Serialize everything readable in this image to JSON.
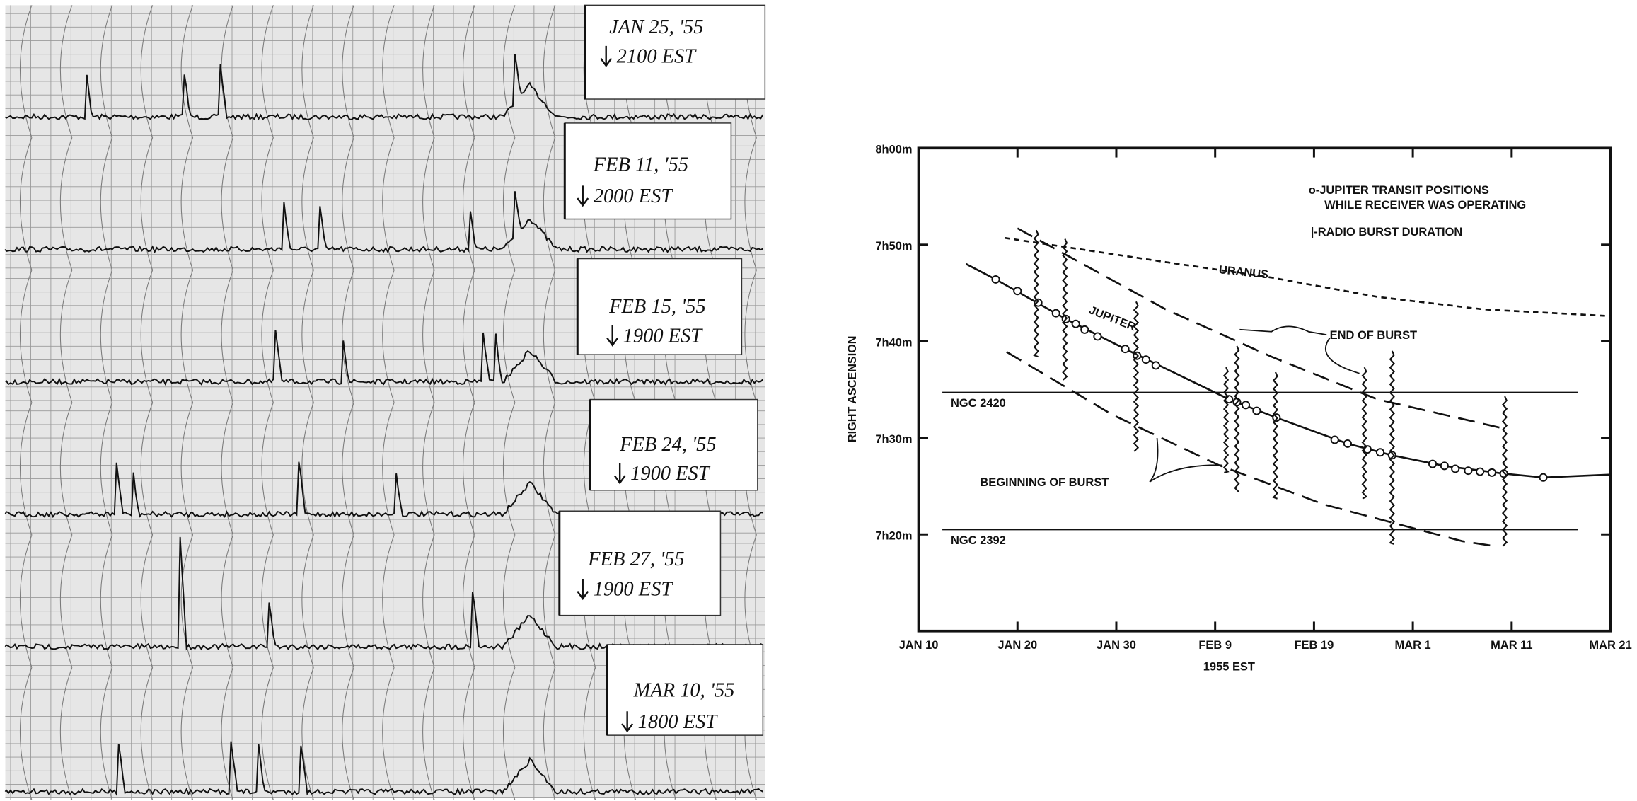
{
  "recordings": [
    {
      "date": "JAN 25, '55",
      "time": "2100 EST"
    },
    {
      "date": "FEB 11, '55",
      "time": "2000 EST"
    },
    {
      "date": "FEB 15, '55",
      "time": "1900 EST"
    },
    {
      "date": "FEB 24, '55",
      "time": "1900 EST"
    },
    {
      "date": "FEB 27, '55",
      "time": "1900 EST"
    },
    {
      "date": "MAR 10, '55",
      "time": "1800 EST"
    }
  ],
  "chart_data": {
    "type": "line",
    "y_label": "RIGHT ASCENSION",
    "x_label": "1955 EST",
    "xlim": [
      10,
      80
    ],
    "xticks": [
      {
        "value": 10,
        "label": "JAN 10"
      },
      {
        "value": 20,
        "label": "JAN 20"
      },
      {
        "value": 30,
        "label": "JAN 30"
      },
      {
        "value": 40,
        "label": "FEB 9"
      },
      {
        "value": 50,
        "label": "FEB 19"
      },
      {
        "value": 60,
        "label": "MAR 1"
      },
      {
        "value": 70,
        "label": "MAR 11"
      },
      {
        "value": 80,
        "label": "MAR 21"
      }
    ],
    "ylim": [
      10,
      60
    ],
    "yticks": [
      {
        "value": 20,
        "label": "7h20m"
      },
      {
        "value": 30,
        "label": "7h30m"
      },
      {
        "value": 40,
        "label": "7h40m"
      },
      {
        "value": 50,
        "label": "7h50m"
      },
      {
        "value": 60,
        "label": "8h00m"
      }
    ],
    "legend_text": [
      "o-JUPITER TRANSIT POSITIONS",
      "WHILE RECEIVER WAS OPERATING",
      "|-RADIO BURST DURATION"
    ],
    "series": [
      {
        "label": "JUPITER",
        "color": "#111111",
        "style": "solid",
        "x": [
          14.8,
          17.8,
          24.9,
          30.9,
          41.4,
          46.2,
          53.4,
          57.9,
          63.2,
          69.2,
          73.2,
          80
        ],
        "values": [
          48,
          46.4,
          42.3,
          39.2,
          34.0,
          32.1,
          29.4,
          28.2,
          27.1,
          26.3,
          25.9,
          26.2
        ]
      },
      {
        "label": "URANUS",
        "color": "#111111",
        "style": "dotted",
        "x": [
          18.7,
          35,
          45.7,
          56.4,
          67.1,
          80
        ],
        "values": [
          50.7,
          48.2,
          46.6,
          44.6,
          43.3,
          42.6
        ]
      },
      {
        "color": "#111111",
        "style": "dashed",
        "x": [
          20,
          35,
          45.7,
          56.4,
          69.5
        ],
        "values": [
          51.7,
          43.3,
          38.4,
          34,
          30.9
        ]
      },
      {
        "color": "#111111",
        "style": "dashed",
        "x": [
          18.9,
          29.6,
          40.3,
          51,
          65,
          68.2
        ],
        "values": [
          38.9,
          32.4,
          27.2,
          23.1,
          19.3,
          18.8
        ]
      },
      {
        "color": "#111111",
        "style": "markers",
        "x": [
          17.8,
          20,
          22.1,
          23.9,
          24.9,
          25.9,
          26.8,
          28.1,
          30.9,
          32.1,
          33,
          34,
          41.4,
          42.2,
          43.1,
          44.2,
          46.2,
          52.1,
          53.4,
          55.4,
          56.7,
          57.9,
          62,
          63.2,
          64.3,
          65.6,
          66.8,
          68,
          69.2,
          73.2
        ],
        "values": [
          46.4,
          45.2,
          44.0,
          42.9,
          42.3,
          41.8,
          41.2,
          40.5,
          39.2,
          38.5,
          38.1,
          37.5,
          34.0,
          33.7,
          33.4,
          32.8,
          32.1,
          29.8,
          29.4,
          28.8,
          28.5,
          28.2,
          27.3,
          27.1,
          26.8,
          26.6,
          26.5,
          26.4,
          26.3,
          25.9
        ]
      }
    ],
    "bursts": {
      "x": [
        21.9,
        24.8,
        32,
        41.1,
        42.2,
        46.1,
        55.1,
        57.9,
        69.3
      ],
      "start": [
        38.4,
        36,
        28.6,
        26.4,
        24.4,
        23.7,
        23.7,
        19,
        18.8
      ],
      "end": [
        51.5,
        50.6,
        44.1,
        37.3,
        39.5,
        36.8,
        37.3,
        39,
        34.3
      ]
    },
    "references": [
      {
        "label": "NGC 2420",
        "value": 34.7,
        "x": [
          12.4,
          76.7
        ]
      },
      {
        "label": "NGC 2392",
        "value": 20.5,
        "x": [
          12.4,
          76.7
        ]
      }
    ],
    "annotations": [
      "END OF BURST",
      "BEGINNING OF BURST"
    ]
  }
}
